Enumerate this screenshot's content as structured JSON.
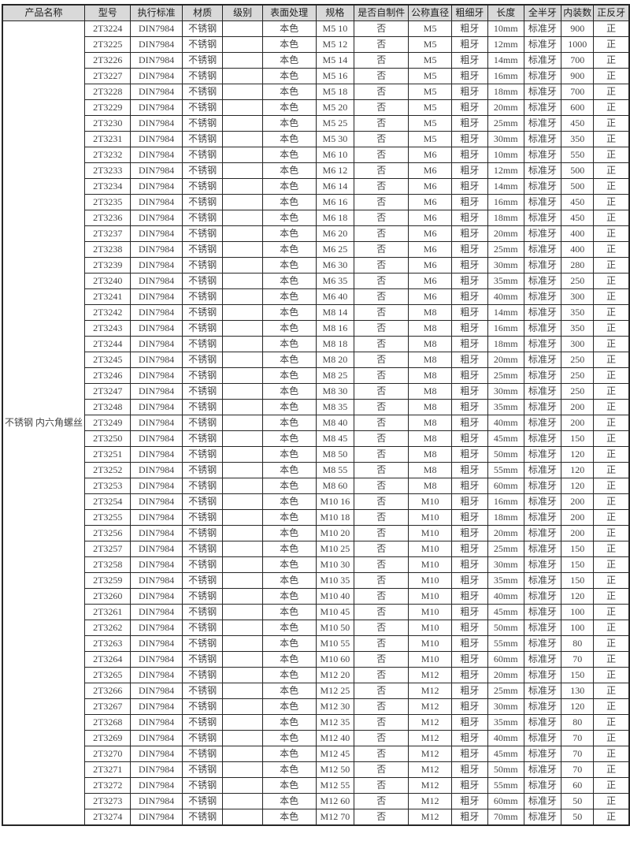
{
  "table": {
    "colors": {
      "header_bg": "#d9d9d9",
      "header_text": "#1f1f1f",
      "border": "#262626",
      "text": "#434343",
      "body_bg": "#ffffff"
    },
    "columns": [
      "产品名称",
      "型号",
      "执行标准",
      "材质",
      "级别",
      "表面处理",
      "规格",
      "是否自制件",
      "公称直径",
      "粗细牙",
      "长度",
      "全半牙",
      "内装数",
      "正反牙"
    ],
    "product_name": "不锈钢 内六角螺丝",
    "row_constants": {
      "standard": "DIN7984",
      "material": "不锈钢",
      "grade": "",
      "surface": "本色",
      "self_made": "否",
      "thread_pitch": "粗牙",
      "full_half": "标准牙",
      "direction": "正"
    },
    "rows": [
      {
        "model": "2T3224",
        "spec": "M5 10",
        "diameter": "M5",
        "length": "10mm",
        "qty": "900"
      },
      {
        "model": "2T3225",
        "spec": "M5 12",
        "diameter": "M5",
        "length": "12mm",
        "qty": "1000"
      },
      {
        "model": "2T3226",
        "spec": "M5 14",
        "diameter": "M5",
        "length": "14mm",
        "qty": "700"
      },
      {
        "model": "2T3227",
        "spec": "M5 16",
        "diameter": "M5",
        "length": "16mm",
        "qty": "900"
      },
      {
        "model": "2T3228",
        "spec": "M5 18",
        "diameter": "M5",
        "length": "18mm",
        "qty": "700"
      },
      {
        "model": "2T3229",
        "spec": "M5 20",
        "diameter": "M5",
        "length": "20mm",
        "qty": "600"
      },
      {
        "model": "2T3230",
        "spec": "M5 25",
        "diameter": "M5",
        "length": "25mm",
        "qty": "450"
      },
      {
        "model": "2T3231",
        "spec": "M5 30",
        "diameter": "M5",
        "length": "30mm",
        "qty": "350"
      },
      {
        "model": "2T3232",
        "spec": "M6 10",
        "diameter": "M6",
        "length": "10mm",
        "qty": "550"
      },
      {
        "model": "2T3233",
        "spec": "M6 12",
        "diameter": "M6",
        "length": "12mm",
        "qty": "500"
      },
      {
        "model": "2T3234",
        "spec": "M6 14",
        "diameter": "M6",
        "length": "14mm",
        "qty": "500"
      },
      {
        "model": "2T3235",
        "spec": "M6 16",
        "diameter": "M6",
        "length": "16mm",
        "qty": "450"
      },
      {
        "model": "2T3236",
        "spec": "M6 18",
        "diameter": "M6",
        "length": "18mm",
        "qty": "450"
      },
      {
        "model": "2T3237",
        "spec": "M6 20",
        "diameter": "M6",
        "length": "20mm",
        "qty": "400"
      },
      {
        "model": "2T3238",
        "spec": "M6 25",
        "diameter": "M6",
        "length": "25mm",
        "qty": "400"
      },
      {
        "model": "2T3239",
        "spec": "M6 30",
        "diameter": "M6",
        "length": "30mm",
        "qty": "280"
      },
      {
        "model": "2T3240",
        "spec": "M6 35",
        "diameter": "M6",
        "length": "35mm",
        "qty": "250"
      },
      {
        "model": "2T3241",
        "spec": "M6 40",
        "diameter": "M6",
        "length": "40mm",
        "qty": "300"
      },
      {
        "model": "2T3242",
        "spec": "M8 14",
        "diameter": "M8",
        "length": "14mm",
        "qty": "350"
      },
      {
        "model": "2T3243",
        "spec": "M8 16",
        "diameter": "M8",
        "length": "16mm",
        "qty": "350"
      },
      {
        "model": "2T3244",
        "spec": "M8 18",
        "diameter": "M8",
        "length": "18mm",
        "qty": "300"
      },
      {
        "model": "2T3245",
        "spec": "M8 20",
        "diameter": "M8",
        "length": "20mm",
        "qty": "250"
      },
      {
        "model": "2T3246",
        "spec": "M8 25",
        "diameter": "M8",
        "length": "25mm",
        "qty": "250"
      },
      {
        "model": "2T3247",
        "spec": "M8 30",
        "diameter": "M8",
        "length": "30mm",
        "qty": "250"
      },
      {
        "model": "2T3248",
        "spec": "M8 35",
        "diameter": "M8",
        "length": "35mm",
        "qty": "200"
      },
      {
        "model": "2T3249",
        "spec": "M8 40",
        "diameter": "M8",
        "length": "40mm",
        "qty": "200"
      },
      {
        "model": "2T3250",
        "spec": "M8 45",
        "diameter": "M8",
        "length": "45mm",
        "qty": "150"
      },
      {
        "model": "2T3251",
        "spec": "M8 50",
        "diameter": "M8",
        "length": "50mm",
        "qty": "120"
      },
      {
        "model": "2T3252",
        "spec": "M8 55",
        "diameter": "M8",
        "length": "55mm",
        "qty": "120"
      },
      {
        "model": "2T3253",
        "spec": "M8 60",
        "diameter": "M8",
        "length": "60mm",
        "qty": "120"
      },
      {
        "model": "2T3254",
        "spec": "M10 16",
        "diameter": "M10",
        "length": "16mm",
        "qty": "200"
      },
      {
        "model": "2T3255",
        "spec": "M10 18",
        "diameter": "M10",
        "length": "18mm",
        "qty": "200"
      },
      {
        "model": "2T3256",
        "spec": "M10 20",
        "diameter": "M10",
        "length": "20mm",
        "qty": "200"
      },
      {
        "model": "2T3257",
        "spec": "M10 25",
        "diameter": "M10",
        "length": "25mm",
        "qty": "150"
      },
      {
        "model": "2T3258",
        "spec": "M10 30",
        "diameter": "M10",
        "length": "30mm",
        "qty": "150"
      },
      {
        "model": "2T3259",
        "spec": "M10 35",
        "diameter": "M10",
        "length": "35mm",
        "qty": "150"
      },
      {
        "model": "2T3260",
        "spec": "M10 40",
        "diameter": "M10",
        "length": "40mm",
        "qty": "120"
      },
      {
        "model": "2T3261",
        "spec": "M10 45",
        "diameter": "M10",
        "length": "45mm",
        "qty": "100"
      },
      {
        "model": "2T3262",
        "spec": "M10 50",
        "diameter": "M10",
        "length": "50mm",
        "qty": "100"
      },
      {
        "model": "2T3263",
        "spec": "M10 55",
        "diameter": "M10",
        "length": "55mm",
        "qty": "80"
      },
      {
        "model": "2T3264",
        "spec": "M10 60",
        "diameter": "M10",
        "length": "60mm",
        "qty": "70"
      },
      {
        "model": "2T3265",
        "spec": "M12 20",
        "diameter": "M12",
        "length": "20mm",
        "qty": "150"
      },
      {
        "model": "2T3266",
        "spec": "M12 25",
        "diameter": "M12",
        "length": "25mm",
        "qty": "130"
      },
      {
        "model": "2T3267",
        "spec": "M12 30",
        "diameter": "M12",
        "length": "30mm",
        "qty": "120"
      },
      {
        "model": "2T3268",
        "spec": "M12 35",
        "diameter": "M12",
        "length": "35mm",
        "qty": "80"
      },
      {
        "model": "2T3269",
        "spec": "M12 40",
        "diameter": "M12",
        "length": "40mm",
        "qty": "70"
      },
      {
        "model": "2T3270",
        "spec": "M12 45",
        "diameter": "M12",
        "length": "45mm",
        "qty": "70"
      },
      {
        "model": "2T3271",
        "spec": "M12 50",
        "diameter": "M12",
        "length": "50mm",
        "qty": "70"
      },
      {
        "model": "2T3272",
        "spec": "M12 55",
        "diameter": "M12",
        "length": "55mm",
        "qty": "60"
      },
      {
        "model": "2T3273",
        "spec": "M12 60",
        "diameter": "M12",
        "length": "60mm",
        "qty": "50"
      },
      {
        "model": "2T3274",
        "spec": "M12 70",
        "diameter": "M12",
        "length": "70mm",
        "qty": "50"
      }
    ]
  }
}
